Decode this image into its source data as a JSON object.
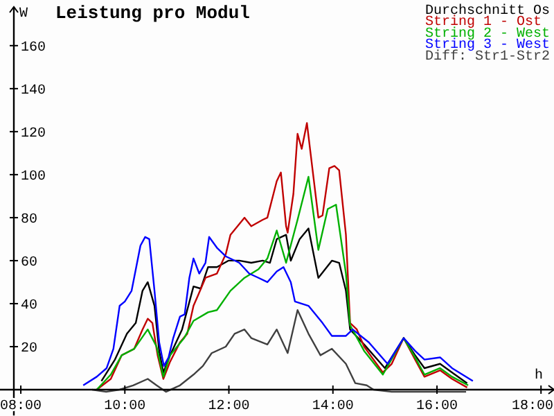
{
  "chart_data": {
    "type": "line",
    "title": "Leistung pro Modul",
    "ylabel": "W",
    "xlabel": "h",
    "xlim": [
      7.6,
      18.25
    ],
    "ylim": [
      -12,
      178
    ],
    "xticks": [
      {
        "value": 8,
        "label": "08:00"
      },
      {
        "value": 10,
        "label": "10:00"
      },
      {
        "value": 12,
        "label": "12:00"
      },
      {
        "value": 14,
        "label": "14:00"
      },
      {
        "value": 16,
        "label": "16:00"
      },
      {
        "value": 18,
        "label": "18:00"
      }
    ],
    "yticks": [
      20,
      40,
      60,
      80,
      100,
      120,
      140,
      160
    ],
    "grid": false,
    "legend": "top right",
    "marker": "none",
    "line_style": "solid",
    "series": [
      {
        "name": "Durchschnitt Os",
        "color": "#000000",
        "x": [
          9.55,
          9.81,
          10.04,
          10.21,
          10.34,
          10.44,
          10.57,
          10.66,
          10.74,
          10.87,
          11.1,
          11.32,
          11.46,
          11.6,
          11.77,
          11.99,
          12.2,
          12.43,
          12.65,
          12.79,
          12.92,
          13.1,
          13.19,
          13.36,
          13.53,
          13.72,
          13.98,
          14.12,
          14.25,
          14.33,
          14.6,
          15.0,
          15.36,
          15.58,
          15.76,
          16.06,
          16.29,
          16.58
        ],
        "values": [
          4,
          14,
          26,
          31,
          46,
          50,
          39,
          18,
          8,
          16,
          28,
          48,
          47,
          57,
          57,
          60,
          60,
          59,
          60,
          59,
          70,
          72,
          60,
          70,
          75,
          52,
          60,
          59,
          46,
          28,
          21,
          10,
          24,
          16,
          10,
          12,
          8,
          3
        ]
      },
      {
        "name": "String 1 - Ost",
        "color": "#c00000",
        "x": [
          9.46,
          9.73,
          9.94,
          10.18,
          10.34,
          10.44,
          10.53,
          10.63,
          10.74,
          10.87,
          11.06,
          11.2,
          11.32,
          11.41,
          11.55,
          11.77,
          11.94,
          12.03,
          12.3,
          12.43,
          12.65,
          12.74,
          12.92,
          13.0,
          13.1,
          13.13,
          13.24,
          13.32,
          13.4,
          13.5,
          13.72,
          13.8,
          13.93,
          14.03,
          14.12,
          14.25,
          14.33,
          14.46,
          14.6,
          14.96,
          15.13,
          15.36,
          15.58,
          15.76,
          16.06,
          16.29,
          16.58
        ],
        "values": [
          0,
          5,
          16,
          19,
          28,
          33,
          31,
          16,
          5,
          13,
          22,
          26,
          39,
          44,
          52,
          54,
          63,
          72,
          80,
          76,
          79,
          80,
          97,
          101,
          76,
          73,
          91,
          119,
          112,
          124,
          80,
          81,
          103,
          104,
          102,
          72,
          31,
          28,
          20,
          8,
          12,
          24,
          14,
          6,
          9,
          5,
          1
        ]
      },
      {
        "name": "String 2 - West",
        "color": "#00b000",
        "x": [
          9.46,
          9.73,
          9.94,
          10.18,
          10.44,
          10.61,
          10.74,
          10.87,
          11.14,
          11.32,
          11.6,
          11.77,
          12.03,
          12.3,
          12.57,
          12.74,
          12.92,
          13.1,
          13.32,
          13.53,
          13.72,
          13.9,
          14.06,
          14.25,
          14.33,
          14.6,
          14.96,
          15.36,
          15.58,
          15.76,
          16.06,
          16.29,
          16.6
        ],
        "values": [
          0,
          7,
          16,
          19,
          28,
          20,
          6,
          16,
          24,
          32,
          36,
          37,
          46,
          52,
          56,
          61,
          74,
          59,
          79,
          99,
          65,
          84,
          86,
          54,
          30,
          18,
          7,
          24,
          15,
          7,
          10,
          6,
          2
        ]
      },
      {
        "name": "String 3 - West",
        "color": "#0000ff",
        "x": [
          9.2,
          9.46,
          9.65,
          9.78,
          9.9,
          10.0,
          10.13,
          10.3,
          10.39,
          10.47,
          10.57,
          10.66,
          10.75,
          10.84,
          10.93,
          11.06,
          11.15,
          11.24,
          11.32,
          11.43,
          11.55,
          11.62,
          11.77,
          11.94,
          12.2,
          12.39,
          12.57,
          12.74,
          12.92,
          13.05,
          13.19,
          13.27,
          13.53,
          13.8,
          13.98,
          14.25,
          14.38,
          14.69,
          15.05,
          15.36,
          15.58,
          15.76,
          16.06,
          16.29,
          16.69
        ],
        "values": [
          2,
          6,
          10,
          19,
          39,
          41,
          46,
          67,
          71,
          70,
          46,
          22,
          11,
          15,
          24,
          34,
          35,
          52,
          61,
          54,
          59,
          71,
          66,
          62,
          59,
          54,
          52,
          50,
          55,
          57,
          50,
          41,
          39,
          31,
          25,
          25,
          28,
          22,
          12,
          24,
          18,
          14,
          15,
          10,
          4
        ]
      },
      {
        "name": "Diff: Str1-Str2",
        "color": "#404040",
        "x": [
          9.37,
          9.64,
          9.9,
          10.16,
          10.44,
          10.61,
          10.79,
          11.06,
          11.32,
          11.5,
          11.67,
          11.94,
          12.11,
          12.3,
          12.43,
          12.74,
          12.92,
          13.13,
          13.32,
          13.53,
          13.76,
          13.98,
          14.25,
          14.43,
          14.65,
          14.78,
          15.13,
          15.58,
          16.29,
          16.56
        ],
        "values": [
          0,
          -1,
          0,
          2,
          5,
          2,
          -1,
          2,
          7,
          11,
          17,
          20,
          26,
          28,
          24,
          21,
          28,
          17,
          37,
          26,
          16,
          19,
          12,
          3,
          2,
          0,
          -1,
          -1,
          -1,
          -1
        ]
      }
    ]
  }
}
